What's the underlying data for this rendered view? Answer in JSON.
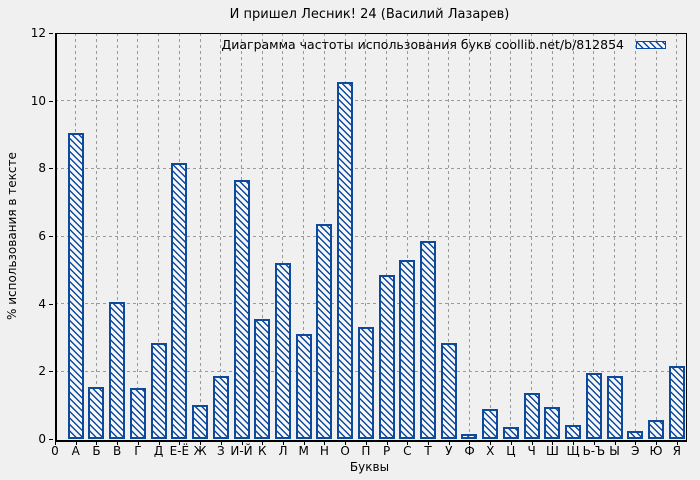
{
  "page": {
    "background_color": "#f0f0f0",
    "accent_color": "#0d4a9c",
    "grid_color": "#9a9a9a"
  },
  "chart_data": {
    "type": "bar",
    "title": "И пришел Лесник! 24 (Василий Лазарев)",
    "legend_label": "Диаграмма частоты использования букв coollib.net/b/812854",
    "legend_position": "top-right-inside",
    "xlabel": "Буквы",
    "ylabel": "% использования в тексте",
    "origin_tick_label": "0",
    "categories": [
      "А",
      "Б",
      "В",
      "Г",
      "Д",
      "Е-Ё",
      "Ж",
      "З",
      "И-Й",
      "К",
      "Л",
      "М",
      "Н",
      "О",
      "П",
      "Р",
      "С",
      "Т",
      "У",
      "Ф",
      "Х",
      "Ц",
      "Ч",
      "Ш",
      "Щ",
      "Ь-Ъ",
      "Ы",
      "Э",
      "Ю",
      "Я"
    ],
    "values": [
      9.05,
      1.55,
      4.05,
      1.5,
      2.85,
      8.15,
      1.0,
      1.85,
      7.65,
      3.55,
      5.2,
      3.1,
      6.35,
      10.55,
      3.3,
      4.85,
      5.3,
      5.85,
      2.85,
      0.15,
      0.9,
      0.35,
      1.35,
      0.95,
      0.4,
      1.95,
      1.85,
      0.25,
      0.55,
      2.15
    ],
    "yticks": [
      0,
      2,
      4,
      6,
      8,
      10,
      12
    ],
    "ylim": [
      0,
      12
    ],
    "grid": true,
    "bar_style": "diagonal-hatch",
    "bar_color": "#0d4a9c"
  }
}
